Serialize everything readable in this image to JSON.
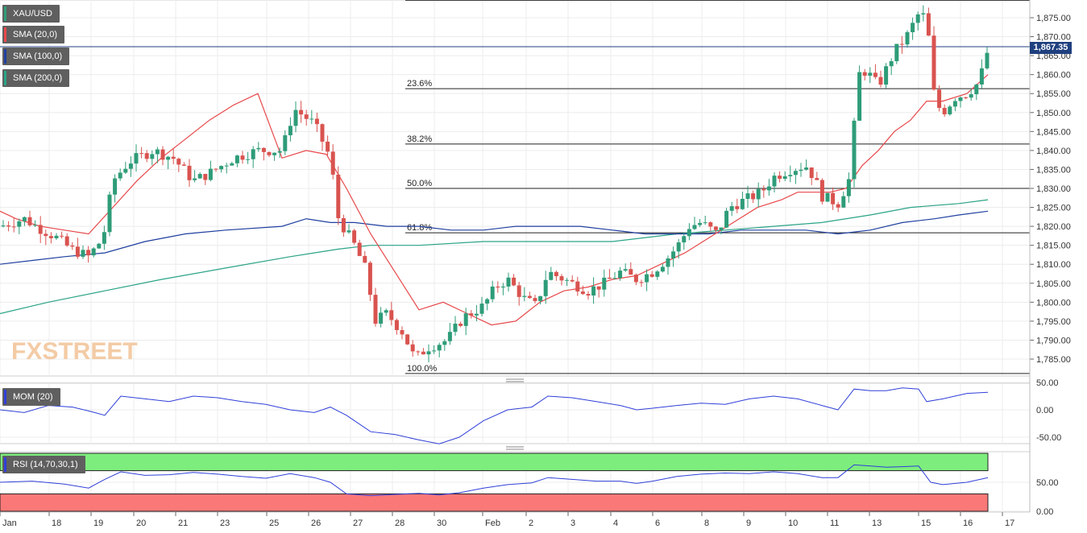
{
  "chart_data": {
    "type": "candlestick",
    "symbol": "XAU/USD",
    "last_price": "1,867.35",
    "price_ylim": [
      1781,
      1880
    ],
    "price_ticks": [
      "1,785.00",
      "1,790.00",
      "1,795.00",
      "1,800.00",
      "1,805.00",
      "1,810.00",
      "1,815.00",
      "1,820.00",
      "1,825.00",
      "1,830.00",
      "1,835.00",
      "1,840.00",
      "1,845.00",
      "1,850.00",
      "1,855.00",
      "1,860.00",
      "1,865.00",
      "1,870.00",
      "1,875.00"
    ],
    "x_ticks": [
      "Jan",
      "18",
      "19",
      "20",
      "21",
      "23",
      "25",
      "26",
      "27",
      "28",
      "30",
      "Feb",
      "2",
      "3",
      "4",
      "6",
      "8",
      "9",
      "10",
      "11",
      "13",
      "15",
      "16",
      "17"
    ],
    "indicators": [
      "SMA (20,0)",
      "SMA (100,0)",
      "SMA (200,0)",
      "MOM (20)",
      "RSI (14,70,30,1)"
    ],
    "fibonacci": [
      {
        "label": "23.6%",
        "value": 1856.3
      },
      {
        "label": "38.2%",
        "value": 1841.7
      },
      {
        "label": "50.0%",
        "value": 1830.0
      },
      {
        "label": "61.8%",
        "value": 1818.3
      },
      {
        "label": "100.0%",
        "value": 1781.2
      }
    ],
    "fib_top": 1879.6,
    "sma20": [
      [
        0,
        1824
      ],
      [
        20,
        1822
      ],
      [
        50,
        1820
      ],
      [
        80,
        1819
      ],
      [
        110,
        1818
      ],
      [
        140,
        1825
      ],
      [
        170,
        1832
      ],
      [
        200,
        1838
      ],
      [
        230,
        1843
      ],
      [
        260,
        1848
      ],
      [
        290,
        1852
      ],
      [
        320,
        1855
      ],
      [
        350,
        1838
      ],
      [
        380,
        1840
      ],
      [
        405,
        1839
      ],
      [
        430,
        1830
      ],
      [
        460,
        1818
      ],
      [
        490,
        1808
      ],
      [
        520,
        1798
      ],
      [
        550,
        1800
      ],
      [
        580,
        1797
      ],
      [
        610,
        1794
      ],
      [
        640,
        1795
      ],
      [
        670,
        1800
      ],
      [
        700,
        1803
      ],
      [
        730,
        1804
      ],
      [
        760,
        1806
      ],
      [
        790,
        1807
      ],
      [
        820,
        1810
      ],
      [
        850,
        1813
      ],
      [
        880,
        1817
      ],
      [
        910,
        1821
      ],
      [
        940,
        1825
      ],
      [
        970,
        1827
      ],
      [
        990,
        1829
      ],
      [
        1010,
        1829
      ],
      [
        1030,
        1829
      ],
      [
        1050,
        1830
      ],
      [
        1070,
        1836
      ],
      [
        1090,
        1840
      ],
      [
        1110,
        1845
      ],
      [
        1130,
        1848
      ],
      [
        1150,
        1853
      ],
      [
        1170,
        1853
      ],
      [
        1200,
        1855
      ],
      [
        1226,
        1860
      ]
    ],
    "sma100": [
      [
        0,
        1810
      ],
      [
        40,
        1811
      ],
      [
        80,
        1812
      ],
      [
        130,
        1813
      ],
      [
        180,
        1816
      ],
      [
        230,
        1818
      ],
      [
        280,
        1819
      ],
      [
        350,
        1820
      ],
      [
        380,
        1822
      ],
      [
        410,
        1821
      ],
      [
        440,
        1821
      ],
      [
        480,
        1820
      ],
      [
        520,
        1820
      ],
      [
        560,
        1819
      ],
      [
        600,
        1819
      ],
      [
        640,
        1820
      ],
      [
        680,
        1820
      ],
      [
        720,
        1820
      ],
      [
        760,
        1819
      ],
      [
        800,
        1818
      ],
      [
        840,
        1818
      ],
      [
        880,
        1818
      ],
      [
        920,
        1819
      ],
      [
        960,
        1819
      ],
      [
        1000,
        1819
      ],
      [
        1040,
        1818
      ],
      [
        1080,
        1819
      ],
      [
        1120,
        1821
      ],
      [
        1160,
        1822
      ],
      [
        1190,
        1823
      ],
      [
        1226,
        1824
      ]
    ],
    "sma200": [
      [
        0,
        1797
      ],
      [
        60,
        1800
      ],
      [
        130,
        1803
      ],
      [
        200,
        1806
      ],
      [
        280,
        1809
      ],
      [
        360,
        1812
      ],
      [
        420,
        1814
      ],
      [
        460,
        1815
      ],
      [
        520,
        1815
      ],
      [
        600,
        1816
      ],
      [
        680,
        1816
      ],
      [
        760,
        1816
      ],
      [
        840,
        1818
      ],
      [
        900,
        1819
      ],
      [
        960,
        1820
      ],
      [
        1020,
        1821
      ],
      [
        1080,
        1823
      ],
      [
        1130,
        1825
      ],
      [
        1190,
        1826
      ],
      [
        1226,
        1827
      ]
    ],
    "mom_ylim": [
      -66,
      55
    ],
    "mom_ticks": [
      "50.00",
      "0.00",
      "-50.00"
    ],
    "mom": [
      [
        0,
        0
      ],
      [
        30,
        -5
      ],
      [
        60,
        8
      ],
      [
        90,
        5
      ],
      [
        110,
        -2
      ],
      [
        130,
        -10
      ],
      [
        150,
        25
      ],
      [
        180,
        20
      ],
      [
        210,
        15
      ],
      [
        240,
        25
      ],
      [
        270,
        22
      ],
      [
        300,
        15
      ],
      [
        330,
        10
      ],
      [
        360,
        0
      ],
      [
        390,
        -5
      ],
      [
        410,
        5
      ],
      [
        430,
        -10
      ],
      [
        460,
        -40
      ],
      [
        490,
        -45
      ],
      [
        520,
        -55
      ],
      [
        545,
        -62
      ],
      [
        570,
        -50
      ],
      [
        600,
        -20
      ],
      [
        630,
        0
      ],
      [
        660,
        5
      ],
      [
        680,
        25
      ],
      [
        710,
        22
      ],
      [
        740,
        15
      ],
      [
        770,
        8
      ],
      [
        790,
        0
      ],
      [
        810,
        3
      ],
      [
        840,
        8
      ],
      [
        870,
        12
      ],
      [
        900,
        10
      ],
      [
        930,
        20
      ],
      [
        960,
        25
      ],
      [
        990,
        20
      ],
      [
        1020,
        8
      ],
      [
        1040,
        0
      ],
      [
        1060,
        38
      ],
      [
        1080,
        35
      ],
      [
        1100,
        35
      ],
      [
        1120,
        40
      ],
      [
        1140,
        38
      ],
      [
        1150,
        15
      ],
      [
        1170,
        20
      ],
      [
        1200,
        30
      ],
      [
        1226,
        32
      ]
    ],
    "rsi_ylim": [
      0,
      100
    ],
    "rsi_levels": [
      30,
      70
    ],
    "rsi_ticks": [
      "50.00",
      "0.00"
    ],
    "rsi": [
      [
        0,
        50
      ],
      [
        40,
        52
      ],
      [
        80,
        47
      ],
      [
        110,
        40
      ],
      [
        130,
        55
      ],
      [
        150,
        68
      ],
      [
        180,
        62
      ],
      [
        210,
        63
      ],
      [
        240,
        67
      ],
      [
        270,
        64
      ],
      [
        300,
        60
      ],
      [
        330,
        57
      ],
      [
        360,
        65
      ],
      [
        390,
        58
      ],
      [
        410,
        50
      ],
      [
        430,
        30
      ],
      [
        460,
        27
      ],
      [
        490,
        29
      ],
      [
        520,
        31
      ],
      [
        545,
        28
      ],
      [
        570,
        32
      ],
      [
        600,
        40
      ],
      [
        630,
        46
      ],
      [
        660,
        49
      ],
      [
        680,
        58
      ],
      [
        710,
        55
      ],
      [
        740,
        52
      ],
      [
        770,
        52
      ],
      [
        790,
        48
      ],
      [
        810,
        52
      ],
      [
        840,
        60
      ],
      [
        870,
        64
      ],
      [
        900,
        66
      ],
      [
        930,
        65
      ],
      [
        960,
        68
      ],
      [
        990,
        65
      ],
      [
        1020,
        58
      ],
      [
        1040,
        58
      ],
      [
        1060,
        80
      ],
      [
        1080,
        78
      ],
      [
        1100,
        76
      ],
      [
        1120,
        77
      ],
      [
        1140,
        78
      ],
      [
        1155,
        50
      ],
      [
        1170,
        46
      ],
      [
        1200,
        50
      ],
      [
        1226,
        58
      ]
    ]
  },
  "watermark": "FXSTREET",
  "colors": {
    "bull": "#2e9c78",
    "bear": "#d9534f",
    "sma20": "#e8484a",
    "sma100": "#1f3f9f",
    "sma200": "#2aa386",
    "osc": "#2f3fd8",
    "rsi_upper_band": "#7dee7d",
    "rsi_lower_band": "#fb7878"
  }
}
